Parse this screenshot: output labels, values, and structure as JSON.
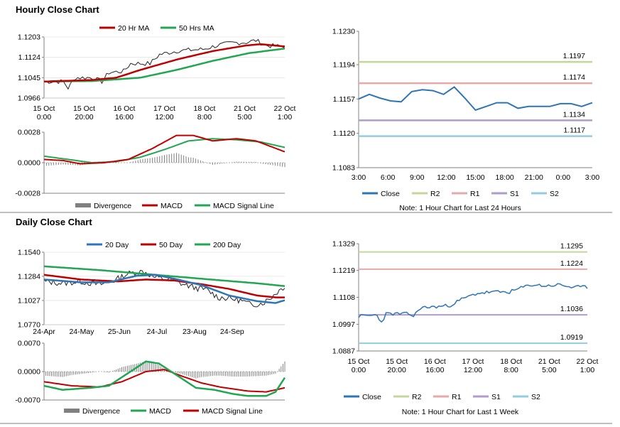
{
  "sections": {
    "hourly_title": "Hourly Close Chart",
    "daily_title": "Daily Close Chart"
  },
  "colors": {
    "red": "#C00000",
    "green": "#21A651",
    "blue": "#2E75B6",
    "grey": "#808080",
    "r2": "#C4D79B",
    "r1": "#E6A9A9",
    "s1": "#B19CC9",
    "s2": "#93CDDD",
    "price": "#222222"
  },
  "chart_data": [
    {
      "id": "hourly_price",
      "type": "line",
      "legend": [
        "20 Hr MA",
        "50 Hrs MA"
      ],
      "yticks": [
        "1.1203",
        "1.1124",
        "1.1045",
        "1.0966"
      ],
      "ylim": [
        1.0966,
        1.1203
      ],
      "xticks": [
        [
          "15 Oct",
          "0:00"
        ],
        [
          "15 Oct",
          "20:00"
        ],
        [
          "16 Oct",
          "16:00"
        ],
        [
          "17 Oct",
          "12:00"
        ],
        [
          "18 Oct",
          "8:00"
        ],
        [
          "21 Oct",
          "5:00"
        ],
        [
          "22 Oct",
          "1:00"
        ]
      ],
      "n": 100,
      "close_anchors": [
        [
          0,
          1.103
        ],
        [
          8,
          1.103
        ],
        [
          10,
          1.1005
        ],
        [
          13,
          1.1045
        ],
        [
          20,
          1.1045
        ],
        [
          24,
          1.103
        ],
        [
          27,
          1.1065
        ],
        [
          33,
          1.107
        ],
        [
          36,
          1.11
        ],
        [
          44,
          1.11
        ],
        [
          48,
          1.1135
        ],
        [
          56,
          1.115
        ],
        [
          66,
          1.1155
        ],
        [
          72,
          1.117
        ],
        [
          78,
          1.118
        ],
        [
          84,
          1.1182
        ],
        [
          88,
          1.119
        ],
        [
          92,
          1.117
        ],
        [
          100,
          1.1165
        ]
      ],
      "ma20_anchors": [
        [
          0,
          1.103
        ],
        [
          20,
          1.1036
        ],
        [
          30,
          1.1045
        ],
        [
          40,
          1.1075
        ],
        [
          55,
          1.1115
        ],
        [
          70,
          1.1148
        ],
        [
          84,
          1.117
        ],
        [
          90,
          1.1175
        ],
        [
          100,
          1.1166
        ]
      ],
      "ma50_anchors": [
        [
          0,
          1.103
        ],
        [
          20,
          1.1032
        ],
        [
          40,
          1.1045
        ],
        [
          55,
          1.1075
        ],
        [
          70,
          1.111
        ],
        [
          85,
          1.114
        ],
        [
          100,
          1.1158
        ]
      ]
    },
    {
      "id": "hourly_macd",
      "type": "line",
      "legend": [
        "Divergence",
        "MACD",
        "MACD Signal Line"
      ],
      "yticks": [
        "0.0028",
        "0.0000",
        "-0.0028"
      ],
      "ylim": [
        -0.0028,
        0.0028
      ],
      "n": 100,
      "macd_anchors": [
        [
          0,
          0.0003
        ],
        [
          8,
          0.0002
        ],
        [
          15,
          -0.0001
        ],
        [
          25,
          0.0
        ],
        [
          35,
          0.0003
        ],
        [
          45,
          0.0013
        ],
        [
          55,
          0.0025
        ],
        [
          62,
          0.0025
        ],
        [
          70,
          0.002
        ],
        [
          80,
          0.0022
        ],
        [
          88,
          0.002
        ],
        [
          100,
          0.001
        ]
      ],
      "signal_anchors": [
        [
          0,
          0.0006
        ],
        [
          10,
          0.0003
        ],
        [
          20,
          0.0
        ],
        [
          30,
          0.0001
        ],
        [
          40,
          0.0005
        ],
        [
          50,
          0.0012
        ],
        [
          60,
          0.002
        ],
        [
          70,
          0.0022
        ],
        [
          80,
          0.0021
        ],
        [
          90,
          0.0019
        ],
        [
          100,
          0.0014
        ]
      ]
    },
    {
      "id": "hourly_levels",
      "type": "line",
      "yticks": [
        "1.1230",
        "1.1194",
        "1.1157",
        "1.1120",
        "1.1083"
      ],
      "ylim": [
        1.1083,
        1.123
      ],
      "xticks": [
        "3:00",
        "6:00",
        "9:00",
        "12:00",
        "15:00",
        "18:00",
        "21:00",
        "0:00",
        "3:00"
      ],
      "levels": {
        "R2": 1.1197,
        "R1": 1.1174,
        "S1": 1.1134,
        "S2": 1.1117
      },
      "level_labels": {
        "R2": "1.1197",
        "R1": "1.1174",
        "S1": "1.1134",
        "S2": "1.1117"
      },
      "close": [
        1.1157,
        1.1162,
        1.1158,
        1.1155,
        1.1154,
        1.1165,
        1.1167,
        1.1166,
        1.1162,
        1.117,
        1.1158,
        1.1145,
        1.1149,
        1.1153,
        1.1153,
        1.1147,
        1.1149,
        1.1149,
        1.1149,
        1.1152,
        1.1152,
        1.1149,
        1.1153
      ],
      "legend": [
        "Close",
        "R2",
        "R1",
        "S1",
        "S2"
      ],
      "note": "Note: 1 Hour Chart for Last 24 Hours"
    },
    {
      "id": "daily_price",
      "type": "line",
      "legend": [
        "20 Day",
        "50 Day",
        "200 Day"
      ],
      "yticks": [
        "1.1540",
        "1.1284",
        "1.1027",
        "1.0770"
      ],
      "ylim": [
        1.077,
        1.154
      ],
      "xticks": [
        "24-Apr",
        "24-May",
        "25-Jun",
        "24-Jul",
        "23-Aug",
        "24-Sep"
      ],
      "n": 130,
      "close_anchors": [
        [
          0,
          1.123
        ],
        [
          10,
          1.121
        ],
        [
          20,
          1.123
        ],
        [
          30,
          1.1195
        ],
        [
          38,
          1.124
        ],
        [
          45,
          1.131
        ],
        [
          50,
          1.133
        ],
        [
          54,
          1.1335
        ],
        [
          60,
          1.127
        ],
        [
          68,
          1.125
        ],
        [
          75,
          1.12
        ],
        [
          82,
          1.116
        ],
        [
          88,
          1.114
        ],
        [
          94,
          1.106
        ],
        [
          100,
          1.105
        ],
        [
          106,
          1.103
        ],
        [
          112,
          1.098
        ],
        [
          118,
          1.1
        ],
        [
          122,
          1.105
        ],
        [
          126,
          1.112
        ],
        [
          130,
          1.118
        ]
      ],
      "ma20_anchors": [
        [
          0,
          1.125
        ],
        [
          20,
          1.122
        ],
        [
          35,
          1.122
        ],
        [
          50,
          1.129
        ],
        [
          60,
          1.13
        ],
        [
          70,
          1.126
        ],
        [
          85,
          1.119
        ],
        [
          100,
          1.108
        ],
        [
          115,
          1.102
        ],
        [
          125,
          1.1
        ],
        [
          130,
          1.103
        ]
      ],
      "ma50_anchors": [
        [
          0,
          1.13
        ],
        [
          20,
          1.125
        ],
        [
          40,
          1.123
        ],
        [
          55,
          1.125
        ],
        [
          70,
          1.124
        ],
        [
          85,
          1.12
        ],
        [
          100,
          1.115
        ],
        [
          115,
          1.108
        ],
        [
          125,
          1.106
        ],
        [
          130,
          1.106
        ]
      ],
      "ma200_anchors": [
        [
          0,
          1.139
        ],
        [
          30,
          1.135
        ],
        [
          60,
          1.13
        ],
        [
          90,
          1.125
        ],
        [
          115,
          1.121
        ],
        [
          130,
          1.118
        ]
      ]
    },
    {
      "id": "daily_macd",
      "type": "line",
      "legend": [
        "Divergence",
        "MACD",
        "MACD Signal Line"
      ],
      "yticks": [
        "0.0070",
        "0.0000",
        "-0.0070"
      ],
      "ylim": [
        -0.007,
        0.007
      ],
      "n": 130,
      "macd_anchors": [
        [
          0,
          -0.0035
        ],
        [
          10,
          -0.0045
        ],
        [
          25,
          -0.004
        ],
        [
          35,
          -0.0035
        ],
        [
          45,
          -0.0005
        ],
        [
          55,
          0.0025
        ],
        [
          62,
          0.002
        ],
        [
          72,
          -0.001
        ],
        [
          82,
          -0.004
        ],
        [
          92,
          -0.0045
        ],
        [
          102,
          -0.0055
        ],
        [
          110,
          -0.006
        ],
        [
          120,
          -0.006
        ],
        [
          125,
          -0.005
        ],
        [
          130,
          -0.0015
        ]
      ],
      "signal_anchors": [
        [
          0,
          -0.0025
        ],
        [
          15,
          -0.0035
        ],
        [
          30,
          -0.0038
        ],
        [
          42,
          -0.0025
        ],
        [
          55,
          0.0
        ],
        [
          65,
          0.0005
        ],
        [
          75,
          -0.0012
        ],
        [
          85,
          -0.0028
        ],
        [
          95,
          -0.0038
        ],
        [
          110,
          -0.0048
        ],
        [
          120,
          -0.005
        ],
        [
          130,
          -0.004
        ]
      ]
    },
    {
      "id": "daily_levels",
      "type": "line",
      "yticks": [
        "1.1329",
        "1.1219",
        "1.1108",
        "1.0997",
        "1.0887"
      ],
      "ylim": [
        1.0887,
        1.1329
      ],
      "xticks": [
        [
          "15 Oct",
          "0:00"
        ],
        [
          "15 Oct",
          "20:00"
        ],
        [
          "16 Oct",
          "16:00"
        ],
        [
          "17 Oct",
          "12:00"
        ],
        [
          "18 Oct",
          "8:00"
        ],
        [
          "21 Oct",
          "5:00"
        ],
        [
          "22 Oct",
          "1:00"
        ]
      ],
      "levels": {
        "R2": 1.1295,
        "R1": 1.1224,
        "S1": 1.1036,
        "S2": 1.0919
      },
      "level_labels": {
        "R2": "1.1295",
        "R1": "1.1224",
        "S1": "1.1036",
        "S2": "1.0919"
      },
      "n": 100,
      "close_anchors": [
        [
          0,
          1.103
        ],
        [
          8,
          1.1035
        ],
        [
          10,
          1.1005
        ],
        [
          12,
          1.104
        ],
        [
          22,
          1.104
        ],
        [
          24,
          1.103
        ],
        [
          27,
          1.1065
        ],
        [
          35,
          1.107
        ],
        [
          40,
          1.1075
        ],
        [
          45,
          1.11
        ],
        [
          52,
          1.1125
        ],
        [
          58,
          1.113
        ],
        [
          66,
          1.113
        ],
        [
          72,
          1.115
        ],
        [
          76,
          1.116
        ],
        [
          82,
          1.1155
        ],
        [
          88,
          1.116
        ],
        [
          93,
          1.115
        ],
        [
          100,
          1.115
        ]
      ],
      "legend": [
        "Close",
        "R2",
        "R1",
        "S1",
        "S2"
      ],
      "note": "Note: 1 Hour Chart for Last 1 Week"
    }
  ]
}
